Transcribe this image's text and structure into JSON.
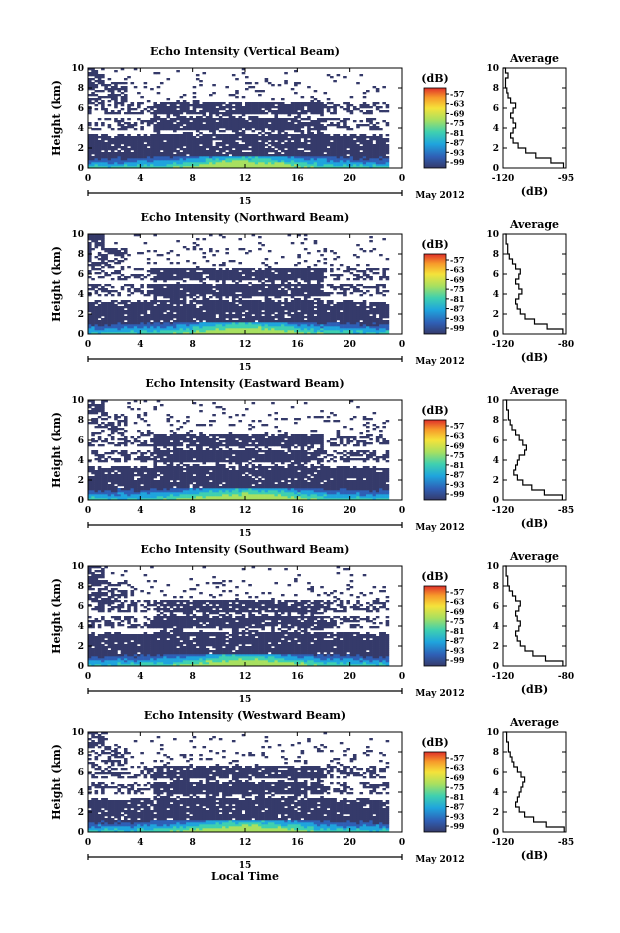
{
  "figure": {
    "xlabel": "Local Time",
    "colorbar_unit": "(dB)",
    "date_label": "May 2012",
    "day_marker": "15",
    "profile_title": "Average",
    "profile_xlabel": "(dB)",
    "colors": {
      "background": "#ffffff",
      "navy": "#353a6a",
      "line": "#000000"
    }
  },
  "chart_data": [
    {
      "type": "heatmap",
      "title": "Echo Intensity (Vertical Beam)",
      "xlabel": "",
      "ylabel": "Height (km)",
      "xlim": [
        0,
        24
      ],
      "ylim": [
        0,
        10
      ],
      "xticks": [
        "0",
        "4",
        "8",
        "12",
        "16",
        "20",
        "0"
      ],
      "yticks": [
        "0",
        "2",
        "4",
        "6",
        "8",
        "10"
      ],
      "colorbar": {
        "unit": "(dB)",
        "ticks": [
          "-57",
          "-63",
          "-69",
          "-75",
          "-81",
          "-87",
          "-93",
          "-99"
        ]
      },
      "grid": false,
      "profile": {
        "title": "Average",
        "xlabel": "(dB)",
        "xticks": [
          "-120",
          "-95"
        ],
        "xlim": [
          -120,
          -95
        ],
        "yticks": [
          "0",
          "2",
          "4",
          "6",
          "8",
          "10"
        ],
        "ylim": [
          0,
          10
        ],
        "heights": [
          0,
          0.5,
          1,
          1.5,
          2,
          2.5,
          3,
          3.5,
          4,
          4.5,
          5,
          5.5,
          6,
          6.5,
          7,
          7.5,
          8,
          8.5,
          9,
          9.5,
          10
        ],
        "values": [
          -96,
          -101,
          -107,
          -111,
          -114,
          -116,
          -117,
          -116,
          -115,
          -116,
          -117,
          -116,
          -115,
          -117,
          -118,
          -118.5,
          -119,
          -119,
          -118,
          -119,
          -120
        ]
      }
    },
    {
      "type": "heatmap",
      "title": "Echo Intensity (Northward Beam)",
      "xlabel": "",
      "ylabel": "Height (km)",
      "xlim": [
        0,
        24
      ],
      "ylim": [
        0,
        10
      ],
      "xticks": [
        "0",
        "4",
        "8",
        "12",
        "16",
        "20",
        "0"
      ],
      "yticks": [
        "0",
        "2",
        "4",
        "6",
        "8",
        "10"
      ],
      "colorbar": {
        "unit": "(dB)",
        "ticks": [
          "-57",
          "-63",
          "-69",
          "-75",
          "-81",
          "-87",
          "-93",
          "-99"
        ]
      },
      "grid": false,
      "profile": {
        "title": "Average",
        "xlabel": "(dB)",
        "xticks": [
          "-120",
          "-80"
        ],
        "xlim": [
          -120,
          -80
        ],
        "yticks": [
          "0",
          "2",
          "4",
          "6",
          "8",
          "10"
        ],
        "ylim": [
          0,
          10
        ],
        "heights": [
          0,
          0.5,
          1,
          1.5,
          2,
          2.5,
          3,
          3.5,
          4,
          4.5,
          5,
          5.5,
          6,
          6.5,
          7,
          7.5,
          8,
          8.5,
          9,
          9.5,
          10
        ],
        "values": [
          -82,
          -92,
          -100,
          -106,
          -109,
          -111,
          -112,
          -110,
          -108,
          -110,
          -112,
          -110,
          -109,
          -112,
          -114,
          -116,
          -117,
          -117,
          -118,
          -118,
          -119
        ]
      }
    },
    {
      "type": "heatmap",
      "title": "Echo Intensity (Eastward Beam)",
      "xlabel": "",
      "ylabel": "Height (km)",
      "xlim": [
        0,
        24
      ],
      "ylim": [
        0,
        10
      ],
      "xticks": [
        "0",
        "4",
        "8",
        "12",
        "16",
        "20",
        "0"
      ],
      "yticks": [
        "0",
        "2",
        "4",
        "6",
        "8",
        "10"
      ],
      "colorbar": {
        "unit": "(dB)",
        "ticks": [
          "-57",
          "-63",
          "-69",
          "-75",
          "-81",
          "-87",
          "-93",
          "-99"
        ]
      },
      "grid": false,
      "profile": {
        "title": "Average",
        "xlabel": "(dB)",
        "xticks": [
          "-120",
          "-85"
        ],
        "xlim": [
          -120,
          -85
        ],
        "yticks": [
          "0",
          "2",
          "4",
          "6",
          "8",
          "10"
        ],
        "ylim": [
          0,
          10
        ],
        "heights": [
          0,
          0.5,
          1,
          1.5,
          2,
          2.5,
          3,
          3.5,
          4,
          4.5,
          5,
          5.5,
          6,
          6.5,
          7,
          7.5,
          8,
          8.5,
          9,
          9.5,
          10
        ],
        "values": [
          -87,
          -97,
          -104,
          -109,
          -112,
          -114,
          -113,
          -112,
          -111,
          -108,
          -107,
          -109,
          -111,
          -113,
          -115,
          -116,
          -117,
          -117,
          -118,
          -118,
          -119
        ]
      }
    },
    {
      "type": "heatmap",
      "title": "Echo Intensity (Southward Beam)",
      "xlabel": "",
      "ylabel": "Height (km)",
      "xlim": [
        0,
        24
      ],
      "ylim": [
        0,
        10
      ],
      "xticks": [
        "0",
        "4",
        "8",
        "12",
        "16",
        "20",
        "0"
      ],
      "yticks": [
        "0",
        "2",
        "4",
        "6",
        "8",
        "10"
      ],
      "colorbar": {
        "unit": "(dB)",
        "ticks": [
          "-57",
          "-63",
          "-69",
          "-75",
          "-81",
          "-87",
          "-93",
          "-99"
        ]
      },
      "grid": false,
      "profile": {
        "title": "Average",
        "xlabel": "(dB)",
        "xticks": [
          "-120",
          "-80"
        ],
        "xlim": [
          -120,
          -80
        ],
        "yticks": [
          "0",
          "2",
          "4",
          "6",
          "8",
          "10"
        ],
        "ylim": [
          0,
          10
        ],
        "heights": [
          0,
          0.5,
          1,
          1.5,
          2,
          2.5,
          3,
          3.5,
          4,
          4.5,
          5,
          5.5,
          6,
          6.5,
          7,
          7.5,
          8,
          8.5,
          9,
          9.5,
          10
        ],
        "values": [
          -82,
          -93,
          -101,
          -106,
          -109,
          -111,
          -112,
          -110,
          -109,
          -111,
          -112,
          -110,
          -109,
          -112,
          -114,
          -116,
          -117,
          -117,
          -118,
          -118,
          -119
        ]
      }
    },
    {
      "type": "heatmap",
      "title": "Echo Intensity (Westward Beam)",
      "xlabel": "Local Time",
      "ylabel": "Height (km)",
      "xlim": [
        0,
        24
      ],
      "ylim": [
        0,
        10
      ],
      "xticks": [
        "0",
        "4",
        "8",
        "12",
        "16",
        "20",
        "0"
      ],
      "yticks": [
        "0",
        "2",
        "4",
        "6",
        "8",
        "10"
      ],
      "colorbar": {
        "unit": "(dB)",
        "ticks": [
          "-57",
          "-63",
          "-69",
          "-75",
          "-81",
          "-87",
          "-93",
          "-99"
        ]
      },
      "grid": false,
      "profile": {
        "title": "Average",
        "xlabel": "(dB)",
        "xticks": [
          "-120",
          "-85"
        ],
        "xlim": [
          -120,
          -85
        ],
        "yticks": [
          "0",
          "2",
          "4",
          "6",
          "8",
          "10"
        ],
        "ylim": [
          0,
          10
        ],
        "heights": [
          0,
          0.5,
          1,
          1.5,
          2,
          2.5,
          3,
          3.5,
          4,
          4.5,
          5,
          5.5,
          6,
          6.5,
          7,
          7.5,
          8,
          8.5,
          9,
          9.5,
          10
        ],
        "values": [
          -86,
          -96,
          -103,
          -108,
          -111,
          -113,
          -112,
          -111,
          -110,
          -109,
          -108,
          -110,
          -112,
          -114,
          -115,
          -116,
          -117,
          -117,
          -118,
          -118,
          -119
        ]
      }
    }
  ]
}
